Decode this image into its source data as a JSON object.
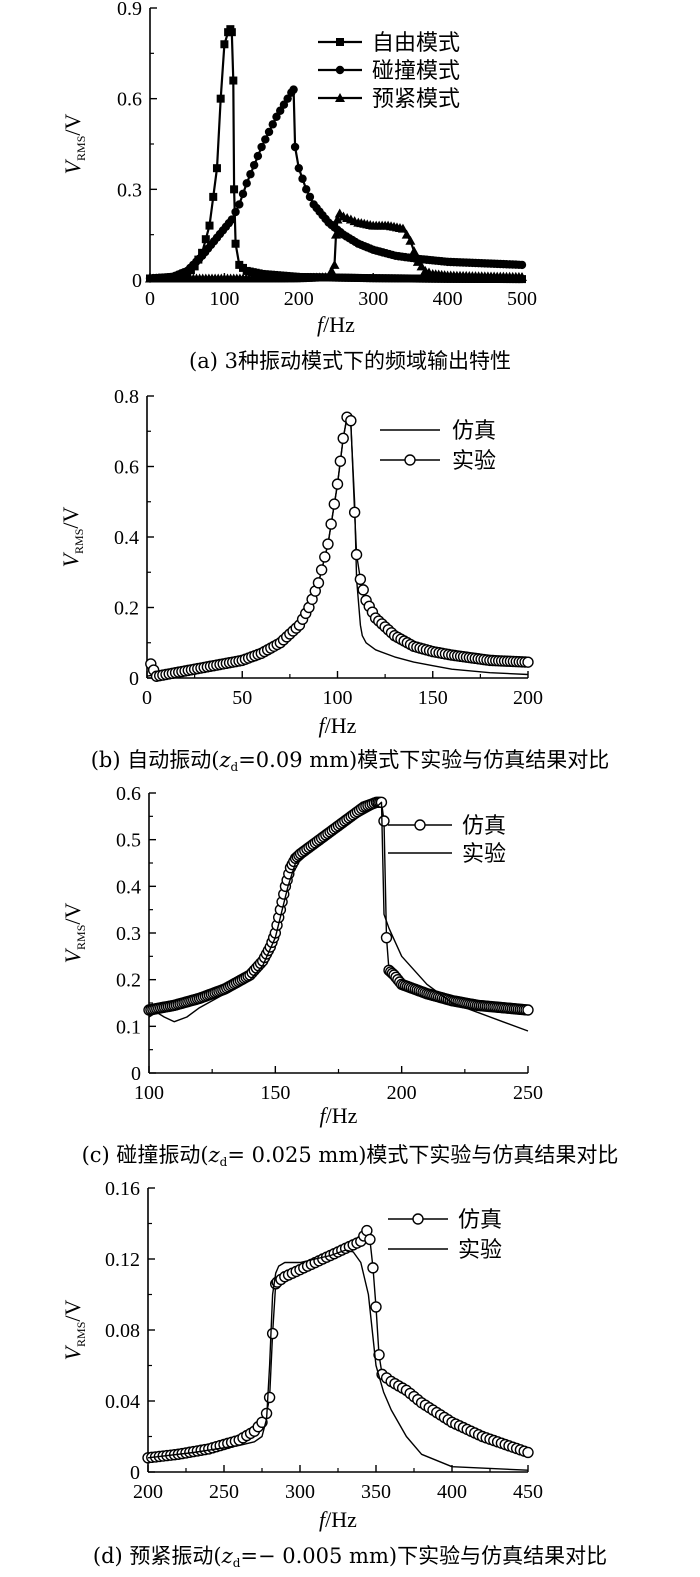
{
  "chart_data": [
    {
      "panel": "a",
      "type": "line",
      "caption": "(a) 3种振动模式下的频域输出特性",
      "xlabel": "f/Hz",
      "ylabel": "V_RMS/V",
      "xlim": [
        0,
        500
      ],
      "ylim": [
        0,
        0.9
      ],
      "xticks": [
        0,
        100,
        200,
        300,
        400,
        500
      ],
      "yticks": [
        0,
        0.3,
        0.6,
        0.9
      ],
      "ytick_labels": [
        "0",
        "0.3",
        "0.6",
        "0.9"
      ],
      "legend_position": "top-right",
      "series": [
        {
          "name": "自由模式",
          "marker": "square",
          "x": [
            0,
            20,
            40,
            50,
            60,
            70,
            80,
            90,
            95,
            100,
            105,
            108,
            110,
            112,
            113,
            115,
            120,
            130,
            150,
            200,
            250,
            300,
            350,
            400,
            500
          ],
          "y": [
            0.005,
            0.008,
            0.012,
            0.02,
            0.045,
            0.09,
            0.18,
            0.37,
            0.6,
            0.78,
            0.82,
            0.83,
            0.82,
            0.66,
            0.3,
            0.12,
            0.05,
            0.03,
            0.02,
            0.01,
            0.008,
            0.006,
            0.005,
            0.004,
            0.003
          ]
        },
        {
          "name": "碰撞模式",
          "marker": "circle",
          "x": [
            0,
            30,
            50,
            70,
            90,
            110,
            120,
            130,
            140,
            150,
            160,
            170,
            180,
            190,
            193,
            195,
            200,
            210,
            220,
            240,
            260,
            280,
            300,
            330,
            360,
            400,
            450,
            500
          ],
          "y": [
            0.005,
            0.01,
            0.03,
            0.08,
            0.14,
            0.2,
            0.25,
            0.32,
            0.38,
            0.44,
            0.49,
            0.54,
            0.58,
            0.62,
            0.63,
            0.44,
            0.37,
            0.3,
            0.25,
            0.19,
            0.15,
            0.12,
            0.1,
            0.08,
            0.07,
            0.06,
            0.055,
            0.05
          ]
        },
        {
          "name": "预紧模式",
          "marker": "triangle",
          "x": [
            0,
            50,
            100,
            150,
            200,
            240,
            248,
            250,
            252,
            255,
            260,
            270,
            280,
            300,
            320,
            340,
            350,
            360,
            370,
            380,
            400,
            450,
            500
          ],
          "y": [
            0.005,
            0.005,
            0.005,
            0.005,
            0.006,
            0.01,
            0.05,
            0.15,
            0.2,
            0.22,
            0.21,
            0.2,
            0.19,
            0.18,
            0.18,
            0.17,
            0.13,
            0.06,
            0.03,
            0.02,
            0.015,
            0.012,
            0.01
          ]
        }
      ]
    },
    {
      "panel": "b",
      "type": "line",
      "caption": "(b) 自动振动(z_d=0.09 mm)模式下实验与仿真结果对比",
      "xlabel": "f/Hz",
      "ylabel": "V_RMS/V",
      "xlim": [
        0,
        200
      ],
      "ylim": [
        0,
        0.8
      ],
      "xticks": [
        0,
        50,
        100,
        150,
        200
      ],
      "yticks": [
        0,
        0.2,
        0.4,
        0.6,
        0.8
      ],
      "ytick_labels": [
        "0",
        "0.2",
        "0.4",
        "0.6",
        "0.8"
      ],
      "legend_position": "top-right",
      "series": [
        {
          "name": "仿真",
          "marker": "none",
          "x": [
            0,
            10,
            20,
            30,
            40,
            50,
            60,
            70,
            80,
            85,
            90,
            95,
            100,
            103,
            105,
            107,
            109,
            110,
            112,
            113,
            115,
            120,
            130,
            140,
            150,
            160,
            180,
            200
          ],
          "y": [
            0.005,
            0.015,
            0.02,
            0.03,
            0.04,
            0.05,
            0.07,
            0.1,
            0.15,
            0.2,
            0.27,
            0.38,
            0.55,
            0.68,
            0.74,
            0.72,
            0.5,
            0.28,
            0.15,
            0.12,
            0.1,
            0.08,
            0.06,
            0.045,
            0.035,
            0.025,
            0.015,
            0.01
          ]
        },
        {
          "name": "实验",
          "marker": "circle",
          "x": [
            2,
            5,
            10,
            20,
            30,
            40,
            50,
            60,
            70,
            80,
            85,
            90,
            95,
            100,
            103,
            105,
            107,
            109,
            110,
            112,
            115,
            120,
            130,
            140,
            150,
            160,
            180,
            200
          ],
          "y": [
            0.04,
            0.005,
            0.01,
            0.02,
            0.03,
            0.04,
            0.05,
            0.07,
            0.1,
            0.15,
            0.2,
            0.27,
            0.38,
            0.55,
            0.68,
            0.74,
            0.73,
            0.47,
            0.35,
            0.28,
            0.22,
            0.17,
            0.12,
            0.09,
            0.075,
            0.065,
            0.05,
            0.045
          ]
        }
      ]
    },
    {
      "panel": "c",
      "type": "line",
      "caption": "(c) 碰撞振动(z_d= 0.025 mm)模式下实验与仿真结果对比",
      "xlabel": "f/Hz",
      "ylabel": "V_RMS/V",
      "xlim": [
        100,
        250
      ],
      "ylim": [
        0,
        0.6
      ],
      "xticks": [
        100,
        150,
        200,
        250
      ],
      "yticks": [
        0,
        0.1,
        0.2,
        0.3,
        0.4,
        0.5,
        0.6
      ],
      "ytick_labels": [
        "0",
        "0.1",
        "0.2",
        "0.3",
        "0.4",
        "0.5",
        "0.6"
      ],
      "legend_position": "top-right",
      "series": [
        {
          "name": "仿真",
          "marker": "circle",
          "x": [
            100,
            110,
            120,
            130,
            140,
            145,
            148,
            150,
            152,
            154,
            156,
            158,
            160,
            165,
            170,
            175,
            180,
            185,
            190,
            192,
            193,
            194,
            195,
            197,
            200,
            210,
            220,
            230,
            240,
            250
          ],
          "y": [
            0.135,
            0.145,
            0.16,
            0.18,
            0.21,
            0.24,
            0.27,
            0.3,
            0.35,
            0.4,
            0.44,
            0.46,
            0.47,
            0.49,
            0.51,
            0.53,
            0.55,
            0.57,
            0.58,
            0.58,
            0.54,
            0.29,
            0.22,
            0.21,
            0.19,
            0.17,
            0.155,
            0.145,
            0.14,
            0.135
          ]
        },
        {
          "name": "实验",
          "marker": "none",
          "x": [
            100,
            103,
            106,
            110,
            115,
            120,
            130,
            140,
            145,
            150,
            155,
            158,
            160,
            170,
            180,
            190,
            192,
            193,
            195,
            200,
            210,
            220,
            230,
            240,
            250
          ],
          "y": [
            0.12,
            0.13,
            0.12,
            0.11,
            0.12,
            0.14,
            0.17,
            0.2,
            0.23,
            0.29,
            0.4,
            0.45,
            0.46,
            0.5,
            0.54,
            0.57,
            0.58,
            0.34,
            0.31,
            0.25,
            0.19,
            0.15,
            0.13,
            0.11,
            0.09
          ]
        }
      ]
    },
    {
      "panel": "d",
      "type": "line",
      "caption": "(d) 预紧振动(z_d=− 0.005 mm)下实验与仿真结果对比",
      "xlabel": "f/Hz",
      "ylabel": "V_RMS/V",
      "xlim": [
        200,
        450
      ],
      "ylim": [
        0,
        0.16
      ],
      "xticks": [
        200,
        250,
        300,
        350,
        400,
        450
      ],
      "yticks": [
        0,
        0.04,
        0.08,
        0.12,
        0.16
      ],
      "ytick_labels": [
        "0",
        "0.04",
        "0.08",
        "0.12",
        "0.16"
      ],
      "legend_position": "top-right",
      "series": [
        {
          "name": "仿真",
          "marker": "circle",
          "x": [
            200,
            220,
            240,
            260,
            270,
            275,
            278,
            280,
            282,
            284,
            285,
            290,
            300,
            310,
            320,
            330,
            340,
            344,
            346,
            348,
            350,
            352,
            354,
            360,
            370,
            380,
            400,
            420,
            440,
            450
          ],
          "y": [
            0.008,
            0.01,
            0.013,
            0.018,
            0.023,
            0.028,
            0.033,
            0.042,
            0.078,
            0.106,
            0.107,
            0.11,
            0.114,
            0.118,
            0.122,
            0.126,
            0.13,
            0.136,
            0.131,
            0.115,
            0.093,
            0.066,
            0.055,
            0.051,
            0.046,
            0.039,
            0.028,
            0.02,
            0.014,
            0.011
          ]
        },
        {
          "name": "实验",
          "marker": "none",
          "x": [
            200,
            230,
            260,
            270,
            275,
            278,
            280,
            282,
            284,
            286,
            290,
            300,
            310,
            320,
            330,
            335,
            340,
            345,
            350,
            355,
            360,
            370,
            380,
            400,
            450
          ],
          "y": [
            0.008,
            0.011,
            0.015,
            0.017,
            0.02,
            0.03,
            0.06,
            0.1,
            0.112,
            0.116,
            0.118,
            0.118,
            0.12,
            0.122,
            0.125,
            0.124,
            0.118,
            0.1,
            0.06,
            0.045,
            0.035,
            0.02,
            0.01,
            0.003,
            0.001
          ]
        }
      ]
    }
  ]
}
